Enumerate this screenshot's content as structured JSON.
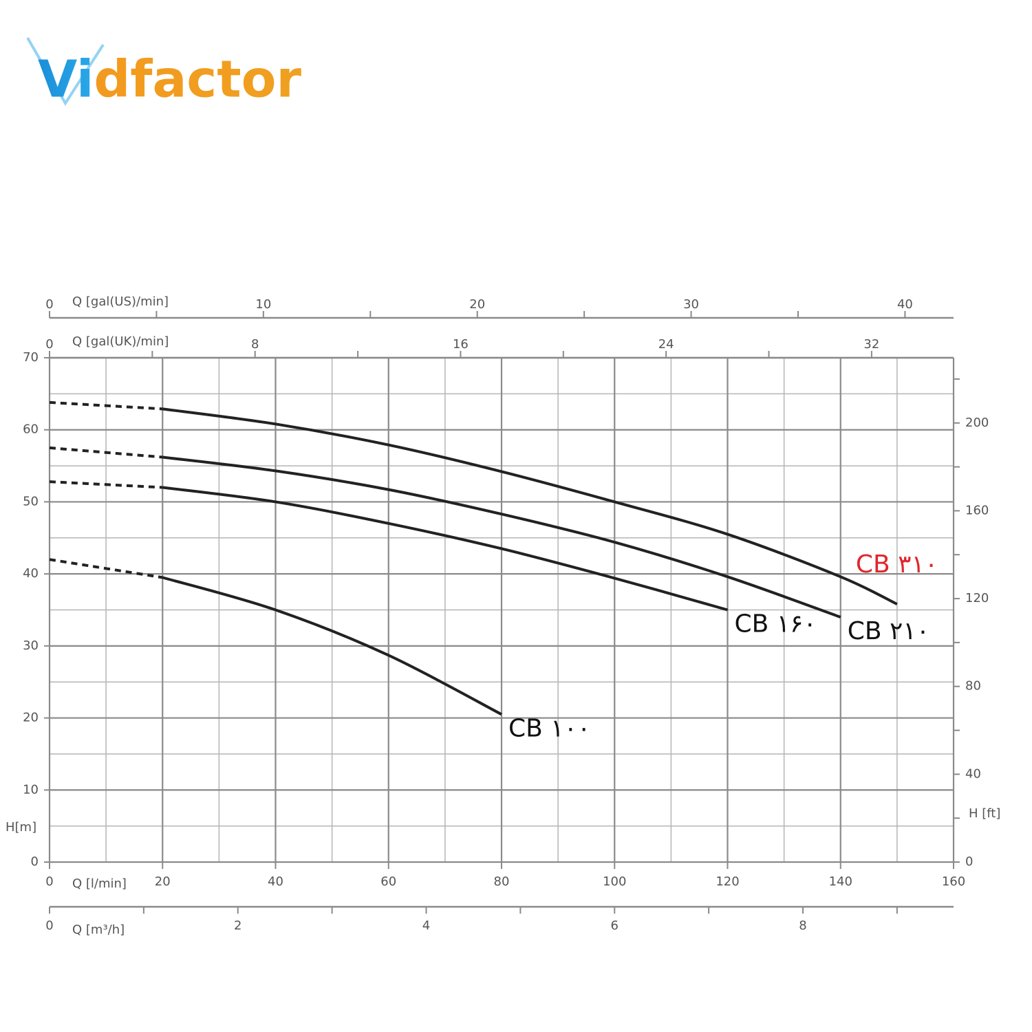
{
  "brand": "Vidfactor",
  "chart_data": {
    "type": "line",
    "xlabel": "Q [l/min]",
    "xlim": [
      0,
      160
    ],
    "xticks": [
      0,
      20,
      40,
      60,
      80,
      100,
      120,
      140,
      160
    ],
    "xminor": [
      10,
      30,
      50,
      70,
      90,
      110,
      130,
      150
    ],
    "ylabel": "H[m]",
    "ylim": [
      0,
      70
    ],
    "yticks": [
      0,
      10,
      20,
      30,
      40,
      50,
      60,
      70
    ],
    "yminor": [
      5,
      15,
      25,
      35,
      45,
      55,
      65
    ],
    "y2label": "H [ft]",
    "y2lim": [
      0,
      229.7
    ],
    "y2ticks": [
      0,
      40,
      80,
      120,
      160,
      200
    ],
    "y2minor": [
      20,
      60,
      100,
      140,
      180,
      220
    ],
    "secondary_x_axes": [
      {
        "label": "Q [m³/h]",
        "side": "bottom",
        "lim": [
          0,
          9.6
        ],
        "ticks": [
          0,
          2,
          4,
          6,
          8
        ],
        "minor": [
          1,
          3,
          5,
          7,
          9
        ]
      },
      {
        "label": "Q [gal(UK)/min]",
        "side": "top",
        "lim": [
          0,
          35.19
        ],
        "ticks": [
          0,
          8,
          16,
          24,
          32
        ],
        "minor": [
          4,
          12,
          20,
          28
        ]
      },
      {
        "label": "Q [gal(US)/min]",
        "side": "top",
        "lim": [
          0,
          42.27
        ],
        "ticks": [
          0,
          10,
          20,
          30,
          40
        ],
        "minor": [
          5,
          15,
          25,
          35
        ]
      }
    ],
    "grid": true,
    "dashed_xmax": 20,
    "series": [
      {
        "name": "CB ۳۱۰",
        "color": "#222222",
        "label_color": "#e0262a",
        "x": [
          0,
          20,
          40,
          60,
          80,
          100,
          120,
          140,
          150
        ],
        "values": [
          63.8,
          62.9,
          60.8,
          57.9,
          54.2,
          50,
          45.5,
          39.6,
          35.8
        ]
      },
      {
        "name": "CB ۲۱۰",
        "color": "#222222",
        "label_color": "#111111",
        "x": [
          0,
          20,
          40,
          60,
          80,
          100,
          120,
          140
        ],
        "values": [
          57.5,
          56.2,
          54.3,
          51.7,
          48.3,
          44.4,
          39.6,
          34
        ]
      },
      {
        "name": "CB ۱۶۰",
        "color": "#222222",
        "label_color": "#111111",
        "x": [
          0,
          20,
          40,
          60,
          80,
          100,
          120
        ],
        "values": [
          52.8,
          52,
          50,
          47,
          43.5,
          39.4,
          35
        ]
      },
      {
        "name": "CB ۱۰۰",
        "color": "#222222",
        "label_color": "#111111",
        "x": [
          0,
          20,
          40,
          60,
          80
        ],
        "values": [
          42,
          39.5,
          35,
          28.7,
          20.5
        ]
      }
    ]
  }
}
